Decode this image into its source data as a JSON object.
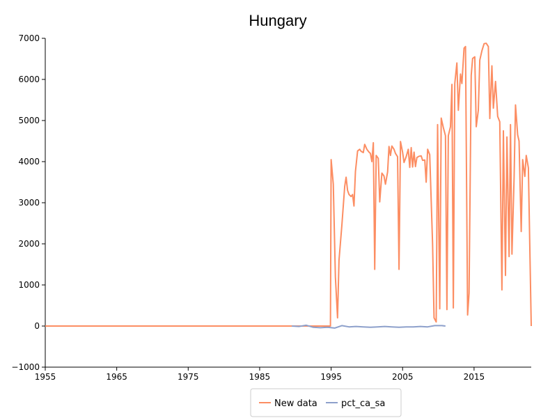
{
  "chart_data": {
    "type": "line",
    "title": "Hungary",
    "xlabel": "",
    "ylabel": "",
    "xlim": [
      1955,
      2023
    ],
    "ylim": [
      -1000,
      7000
    ],
    "xticks": [
      1955,
      1965,
      1975,
      1985,
      1995,
      2005,
      2015
    ],
    "xtick_labels": [
      "1955",
      "1965",
      "1975",
      "1985",
      "1995",
      "2005",
      "2015"
    ],
    "yticks": [
      -1000,
      0,
      1000,
      2000,
      3000,
      4000,
      5000,
      6000,
      7000
    ],
    "ytick_labels": [
      "−1000",
      "0",
      "1000",
      "2000",
      "3000",
      "4000",
      "5000",
      "6000",
      "7000"
    ],
    "grid": false,
    "legend_position": "bottom-center",
    "series": [
      {
        "name": "New data",
        "color": "#fc8d62",
        "points": [
          [
            1955,
            0
          ],
          [
            1994.9,
            0
          ],
          [
            1995.0,
            4050
          ],
          [
            1995.3,
            3450
          ],
          [
            1995.6,
            1200
          ],
          [
            1995.9,
            200
          ],
          [
            1996.1,
            1600
          ],
          [
            1996.5,
            2450
          ],
          [
            1996.9,
            3400
          ],
          [
            1997.1,
            3620
          ],
          [
            1997.3,
            3300
          ],
          [
            1997.5,
            3200
          ],
          [
            1997.8,
            3150
          ],
          [
            1998.0,
            3200
          ],
          [
            1998.2,
            2920
          ],
          [
            1998.4,
            3760
          ],
          [
            1998.7,
            4260
          ],
          [
            1999.0,
            4300
          ],
          [
            1999.2,
            4250
          ],
          [
            1999.5,
            4220
          ],
          [
            1999.7,
            4420
          ],
          [
            2000.0,
            4300
          ],
          [
            2000.3,
            4230
          ],
          [
            2000.5,
            4200
          ],
          [
            2000.7,
            4000
          ],
          [
            2000.9,
            4460
          ],
          [
            2001.1,
            1380
          ],
          [
            2001.3,
            4150
          ],
          [
            2001.6,
            4080
          ],
          [
            2001.8,
            3020
          ],
          [
            2002.1,
            3720
          ],
          [
            2002.4,
            3650
          ],
          [
            2002.6,
            3450
          ],
          [
            2002.9,
            3750
          ],
          [
            2003.1,
            4370
          ],
          [
            2003.3,
            4150
          ],
          [
            2003.5,
            4380
          ],
          [
            2003.8,
            4300
          ],
          [
            2004.0,
            4200
          ],
          [
            2004.3,
            4120
          ],
          [
            2004.5,
            1380
          ],
          [
            2004.7,
            4490
          ],
          [
            2005.0,
            4230
          ],
          [
            2005.2,
            3980
          ],
          [
            2005.5,
            4120
          ],
          [
            2005.8,
            4300
          ],
          [
            2006.0,
            3860
          ],
          [
            2006.2,
            4340
          ],
          [
            2006.4,
            3870
          ],
          [
            2006.6,
            4230
          ],
          [
            2006.8,
            3880
          ],
          [
            2007.0,
            4100
          ],
          [
            2007.3,
            4130
          ],
          [
            2007.6,
            4140
          ],
          [
            2007.8,
            4030
          ],
          [
            2008.1,
            4040
          ],
          [
            2008.3,
            3500
          ],
          [
            2008.5,
            4300
          ],
          [
            2008.8,
            4170
          ],
          [
            2009.2,
            2000
          ],
          [
            2009.4,
            200
          ],
          [
            2009.7,
            100
          ],
          [
            2009.9,
            4900
          ],
          [
            2010.2,
            420
          ],
          [
            2010.4,
            5060
          ],
          [
            2010.7,
            4830
          ],
          [
            2011.0,
            4630
          ],
          [
            2011.2,
            400
          ],
          [
            2011.4,
            4630
          ],
          [
            2011.7,
            4850
          ],
          [
            2011.9,
            5880
          ],
          [
            2012.1,
            440
          ],
          [
            2012.3,
            5900
          ],
          [
            2012.6,
            6400
          ],
          [
            2012.8,
            5250
          ],
          [
            2013.1,
            6130
          ],
          [
            2013.3,
            5900
          ],
          [
            2013.6,
            6760
          ],
          [
            2013.8,
            6800
          ],
          [
            2014.1,
            270
          ],
          [
            2014.3,
            800
          ],
          [
            2014.6,
            6100
          ],
          [
            2014.8,
            6510
          ],
          [
            2015.1,
            6550
          ],
          [
            2015.3,
            4850
          ],
          [
            2015.6,
            5250
          ],
          [
            2015.8,
            6470
          ],
          [
            2016.1,
            6700
          ],
          [
            2016.4,
            6870
          ],
          [
            2016.7,
            6880
          ],
          [
            2017.0,
            6800
          ],
          [
            2017.2,
            5050
          ],
          [
            2017.5,
            6330
          ],
          [
            2017.7,
            5300
          ],
          [
            2018.0,
            5950
          ],
          [
            2018.3,
            5100
          ],
          [
            2018.6,
            4970
          ],
          [
            2018.9,
            880
          ],
          [
            2019.1,
            4750
          ],
          [
            2019.4,
            1230
          ],
          [
            2019.6,
            4600
          ],
          [
            2019.9,
            1690
          ],
          [
            2020.1,
            4900
          ],
          [
            2020.3,
            1750
          ],
          [
            2020.6,
            3620
          ],
          [
            2020.8,
            5380
          ],
          [
            2021.1,
            4650
          ],
          [
            2021.3,
            4500
          ],
          [
            2021.6,
            2300
          ],
          [
            2021.8,
            4050
          ],
          [
            2022.1,
            3640
          ],
          [
            2022.3,
            4150
          ],
          [
            2022.6,
            3850
          ],
          [
            2023.0,
            0
          ]
        ]
      },
      {
        "name": "pct_ca_sa",
        "color": "#8da0cb",
        "points": [
          [
            1989.5,
            0
          ],
          [
            1990.5,
            -10
          ],
          [
            1991.5,
            20
          ],
          [
            1992.5,
            -30
          ],
          [
            1993.5,
            -40
          ],
          [
            1994.5,
            -30
          ],
          [
            1995.5,
            -50
          ],
          [
            1996.5,
            10
          ],
          [
            1997.5,
            -20
          ],
          [
            1998.5,
            -10
          ],
          [
            1999.5,
            -20
          ],
          [
            2000.5,
            -30
          ],
          [
            2001.5,
            -20
          ],
          [
            2002.5,
            -10
          ],
          [
            2003.5,
            -20
          ],
          [
            2004.5,
            -30
          ],
          [
            2005.5,
            -20
          ],
          [
            2006.5,
            -20
          ],
          [
            2007.5,
            -10
          ],
          [
            2008.5,
            -20
          ],
          [
            2009.5,
            10
          ],
          [
            2010.5,
            10
          ],
          [
            2011.0,
            0
          ]
        ]
      }
    ]
  }
}
